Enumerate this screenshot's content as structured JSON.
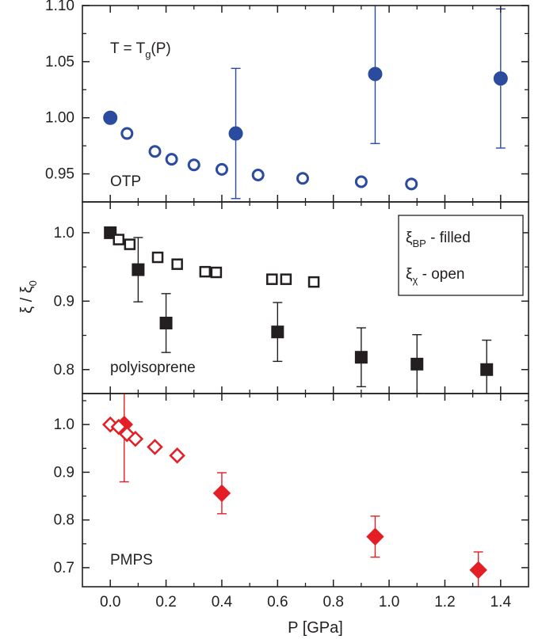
{
  "chart_data": [
    {
      "type": "scatter",
      "panel_label": "OTP",
      "annotation": {
        "main": "T = T",
        "sub": "g",
        "tail": "(P)"
      },
      "ylim": [
        0.925,
        1.1
      ],
      "yticks": [
        0.95,
        1.0,
        1.05,
        1.1
      ],
      "ytick_labels": [
        "0.95",
        "1.00",
        "1.05",
        "1.10"
      ],
      "color": "#2b4b9e",
      "series": [
        {
          "marker": "circle",
          "filled": true,
          "x": [
            0.0,
            0.45,
            0.95,
            1.4
          ],
          "y": [
            1.0,
            0.986,
            1.039,
            1.035
          ],
          "err": [
            0,
            0.058,
            0.062,
            0.062
          ]
        },
        {
          "marker": "circle",
          "filled": false,
          "x": [
            0.06,
            0.16,
            0.22,
            0.3,
            0.4,
            0.53,
            0.69,
            0.9,
            1.08
          ],
          "y": [
            0.986,
            0.97,
            0.963,
            0.958,
            0.954,
            0.949,
            0.946,
            0.943,
            0.941
          ]
        }
      ]
    },
    {
      "type": "scatter",
      "panel_label": "polyisoprene",
      "ylim": [
        0.765,
        1.045
      ],
      "yticks": [
        0.8,
        0.9,
        1.0
      ],
      "ytick_labels": [
        "0.8",
        "0.9",
        "1.0"
      ],
      "color": "#231f20",
      "legend": {
        "position": "top-right",
        "entries": [
          {
            "symbol": "ξ",
            "sub": "BP",
            "text": " - filled"
          },
          {
            "symbol": "ξ",
            "sub": "χ",
            "text": " - open"
          }
        ]
      },
      "series": [
        {
          "marker": "square",
          "filled": true,
          "x": [
            0.0,
            0.1,
            0.2,
            0.6,
            0.9,
            1.1,
            1.35
          ],
          "y": [
            1.0,
            0.946,
            0.868,
            0.855,
            0.818,
            0.808,
            0.8
          ],
          "err": [
            0,
            0.047,
            0.043,
            0.043,
            0.043,
            0.043,
            0.043
          ]
        },
        {
          "marker": "square",
          "filled": false,
          "x": [
            0.03,
            0.07,
            0.17,
            0.24,
            0.34,
            0.38,
            0.58,
            0.63,
            0.73
          ],
          "y": [
            0.99,
            0.983,
            0.964,
            0.954,
            0.943,
            0.942,
            0.932,
            0.932,
            0.928
          ]
        }
      ]
    },
    {
      "type": "scatter",
      "panel_label": "PMPS",
      "ylim": [
        0.66,
        1.065
      ],
      "yticks": [
        0.7,
        0.8,
        0.9,
        1.0
      ],
      "ytick_labels": [
        "0.7",
        "0.8",
        "0.9",
        "1.0"
      ],
      "color": "#e31e24",
      "series": [
        {
          "marker": "diamond",
          "filled": true,
          "x": [
            0.05,
            0.4,
            0.95,
            1.32
          ],
          "y": [
            1.0,
            0.856,
            0.765,
            0.695
          ],
          "err": [
            0.12,
            0.043,
            0.043,
            0.038
          ]
        },
        {
          "marker": "diamond",
          "filled": false,
          "x": [
            0.0,
            0.03,
            0.06,
            0.09,
            0.16,
            0.24
          ],
          "y": [
            1.0,
            0.995,
            0.98,
            0.97,
            0.953,
            0.935
          ]
        }
      ]
    }
  ],
  "x_axis": {
    "label": "P [GPa]",
    "xlim": [
      -0.1,
      1.5
    ],
    "ticks": [
      0.0,
      0.2,
      0.4,
      0.6,
      0.8,
      1.0,
      1.2,
      1.4
    ],
    "tick_labels": [
      "0.0",
      "0.2",
      "0.4",
      "0.6",
      "0.8",
      "1.0",
      "1.2",
      "1.4"
    ]
  },
  "y_axis": {
    "symbol": "ξ",
    "sep": " / ",
    "sub": "0"
  }
}
